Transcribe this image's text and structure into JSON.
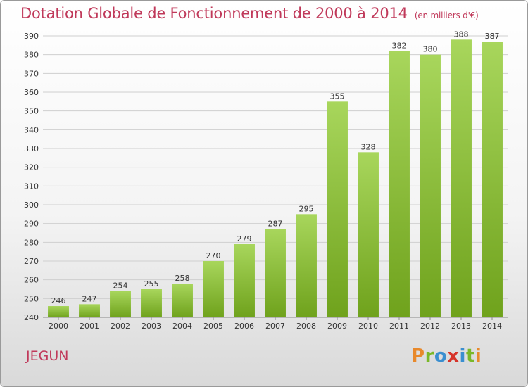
{
  "header": {
    "title": "Dotation Globale de Fonctionnement de 2000 à 2014",
    "subtitle": "(en milliers d'€)"
  },
  "footer": {
    "place": "JEGUN",
    "logo": "Proxiti",
    "logo_colors": [
      "#e8892b",
      "#7ab828",
      "#3a8fd0",
      "#d6342a",
      "#3a8fd0",
      "#7ab828",
      "#e8892b"
    ]
  },
  "colors": {
    "title": "#c0395a",
    "bar_light": "#a8d65c",
    "bar_dark": "#6fa21c",
    "grid": "#cfcfcf"
  },
  "chart_data": {
    "type": "bar",
    "title": "Dotation Globale de Fonctionnement de 2000 à 2014",
    "subtitle": "(en milliers d'€)",
    "xlabel": "",
    "ylabel": "",
    "categories": [
      "2000",
      "2001",
      "2002",
      "2003",
      "2004",
      "2005",
      "2006",
      "2007",
      "2008",
      "2009",
      "2010",
      "2011",
      "2012",
      "2013",
      "2014"
    ],
    "values": [
      246,
      247,
      254,
      255,
      258,
      270,
      279,
      287,
      295,
      355,
      328,
      382,
      380,
      388,
      387
    ],
    "ylim": [
      240,
      390
    ],
    "yticks": [
      240,
      250,
      260,
      270,
      280,
      290,
      300,
      310,
      320,
      330,
      340,
      350,
      360,
      370,
      380,
      390
    ],
    "grid": true,
    "data_labels": true
  }
}
